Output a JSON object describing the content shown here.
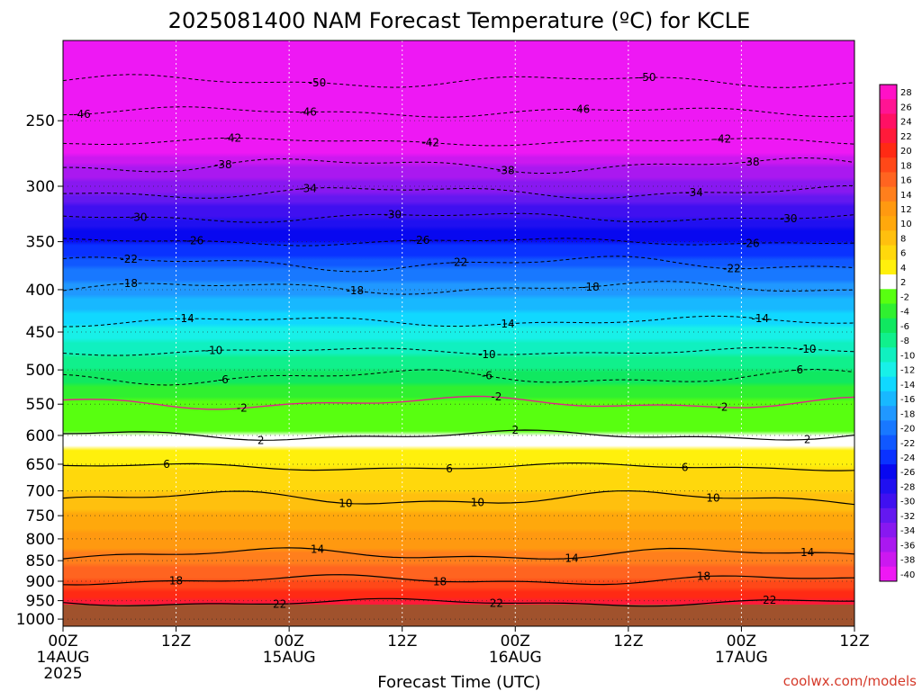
{
  "chart_data": {
    "type": "heatmap",
    "title": "2025081400 NAM Forecast Temperature (ºC) for KCLE",
    "xlabel": "Forecast Time (UTC)",
    "ylabel": "",
    "credit": "coolwx.com/models",
    "x_ticks": [
      {
        "hour": 0,
        "label": "00Z",
        "sub": [
          "14AUG",
          "2025"
        ]
      },
      {
        "hour": 12,
        "label": "12Z",
        "sub": []
      },
      {
        "hour": 24,
        "label": "00Z",
        "sub": [
          "15AUG"
        ]
      },
      {
        "hour": 36,
        "label": "12Z",
        "sub": []
      },
      {
        "hour": 48,
        "label": "00Z",
        "sub": [
          "16AUG"
        ]
      },
      {
        "hour": 60,
        "label": "12Z",
        "sub": []
      },
      {
        "hour": 72,
        "label": "00Z",
        "sub": [
          "17AUG"
        ]
      },
      {
        "hour": 84,
        "label": "12Z",
        "sub": []
      }
    ],
    "xlim": [
      0,
      84
    ],
    "y_ticks": [
      250,
      300,
      350,
      400,
      450,
      500,
      550,
      600,
      650,
      700,
      750,
      800,
      850,
      900,
      950,
      1000
    ],
    "ylim_hPa": [
      1020,
      200
    ],
    "y_scale": "log-pressure",
    "grid": true,
    "colorbar": {
      "levels": [
        28,
        26,
        24,
        22,
        20,
        18,
        16,
        14,
        12,
        10,
        8,
        6,
        4,
        2,
        -2,
        -4,
        -6,
        -8,
        -10,
        -12,
        -14,
        -16,
        -18,
        -20,
        -22,
        -24,
        -26,
        -28,
        -30,
        -32,
        -34,
        -36,
        -38,
        -40
      ],
      "colors": [
        "#ff11c6",
        "#ff1493",
        "#ff1064",
        "#ff1a3a",
        "#ff2a14",
        "#ff4818",
        "#ff6420",
        "#ff7f1c",
        "#ff9910",
        "#ffa80c",
        "#ffc00e",
        "#ffd80c",
        "#fff00c",
        "#ffffff",
        "#58ff10",
        "#30f030",
        "#10e860",
        "#10f08c",
        "#10f0c0",
        "#18f0e8",
        "#10d8ff",
        "#18b8ff",
        "#2098ff",
        "#1878ff",
        "#1058ff",
        "#0a32ff",
        "#0808f0",
        "#2010f0",
        "#4010f0",
        "#6418f0",
        "#8818f0",
        "#aa18f0",
        "#cc18f0",
        "#ee18f4"
      ],
      "position": "right"
    },
    "ground_color": "#a0522d",
    "profile": [
      {
        "p": 1000,
        "t": 23
      },
      {
        "p": 950,
        "t": 22
      },
      {
        "p": 900,
        "t": 18
      },
      {
        "p": 850,
        "t": 15
      },
      {
        "p": 800,
        "t": 12.5
      },
      {
        "p": 750,
        "t": 10.5
      },
      {
        "p": 700,
        "t": 8
      },
      {
        "p": 650,
        "t": 5.5
      },
      {
        "p": 600,
        "t": 2.5
      },
      {
        "p": 550,
        "t": -1.5
      },
      {
        "p": 500,
        "t": -6
      },
      {
        "p": 450,
        "t": -11
      },
      {
        "p": 400,
        "t": -17
      },
      {
        "p": 350,
        "t": -24
      },
      {
        "p": 300,
        "t": -33
      },
      {
        "p": 250,
        "t": -43
      },
      {
        "p": 200,
        "t": -54
      }
    ],
    "contours": [
      {
        "value": 22,
        "p": 955,
        "labels": [
          {
            "x": 23,
            "text": "22"
          },
          {
            "x": 46,
            "text": "22"
          },
          {
            "x": 75,
            "text": "22"
          }
        ]
      },
      {
        "value": 18,
        "p": 897,
        "labels": [
          {
            "x": 12,
            "text": "18"
          },
          {
            "x": 40,
            "text": "18"
          },
          {
            "x": 68,
            "text": "18"
          }
        ]
      },
      {
        "value": 14,
        "p": 835,
        "labels": [
          {
            "x": 27,
            "text": "14"
          },
          {
            "x": 54,
            "text": "14"
          },
          {
            "x": 79,
            "text": "14"
          }
        ]
      },
      {
        "value": 10,
        "p": 715,
        "labels": [
          {
            "x": 30,
            "text": "10"
          },
          {
            "x": 44,
            "text": "10"
          },
          {
            "x": 69,
            "text": "10"
          }
        ]
      },
      {
        "value": 6,
        "p": 655,
        "labels": [
          {
            "x": 11,
            "text": "6"
          },
          {
            "x": 41,
            "text": "6"
          },
          {
            "x": 66,
            "text": "6"
          }
        ]
      },
      {
        "value": 2,
        "p": 600,
        "labels": [
          {
            "x": 21,
            "text": "2"
          },
          {
            "x": 48,
            "text": "2"
          },
          {
            "x": 79,
            "text": "2"
          }
        ]
      },
      {
        "value": -2,
        "p": 548,
        "labels": [
          {
            "x": 19,
            "text": "-2"
          },
          {
            "x": 46,
            "text": "-2"
          },
          {
            "x": 70,
            "text": "-2"
          }
        ]
      },
      {
        "value": -6,
        "p": 510,
        "labels": [
          {
            "x": 17,
            "text": "-6"
          },
          {
            "x": 45,
            "text": "-6"
          },
          {
            "x": 78,
            "text": "-6"
          }
        ]
      },
      {
        "value": -10,
        "p": 475,
        "labels": [
          {
            "x": 16,
            "text": "-10"
          },
          {
            "x": 45,
            "text": "-10"
          },
          {
            "x": 79,
            "text": "-10"
          }
        ]
      },
      {
        "value": -14,
        "p": 437,
        "labels": [
          {
            "x": 13,
            "text": "-14"
          },
          {
            "x": 47,
            "text": "-14"
          },
          {
            "x": 74,
            "text": "-14"
          }
        ]
      },
      {
        "value": -18,
        "p": 398,
        "labels": [
          {
            "x": 7,
            "text": "-18"
          },
          {
            "x": 31,
            "text": "-18"
          },
          {
            "x": 56,
            "text": "-18"
          }
        ]
      },
      {
        "value": -22,
        "p": 372,
        "labels": [
          {
            "x": 7,
            "text": "-22"
          },
          {
            "x": 42,
            "text": "-22"
          },
          {
            "x": 71,
            "text": "-22"
          }
        ]
      },
      {
        "value": -26,
        "p": 350,
        "labels": [
          {
            "x": 14,
            "text": "-26"
          },
          {
            "x": 38,
            "text": "-26"
          },
          {
            "x": 73,
            "text": "-26"
          }
        ]
      },
      {
        "value": -30,
        "p": 327,
        "labels": [
          {
            "x": 8,
            "text": "-30"
          },
          {
            "x": 35,
            "text": "-30"
          },
          {
            "x": 77,
            "text": "-30"
          }
        ]
      },
      {
        "value": -34,
        "p": 305,
        "labels": [
          {
            "x": 26,
            "text": "-34"
          },
          {
            "x": 67,
            "text": "-34"
          }
        ]
      },
      {
        "value": -38,
        "p": 283,
        "labels": [
          {
            "x": 17,
            "text": "-38"
          },
          {
            "x": 47,
            "text": "-38"
          },
          {
            "x": 73,
            "text": "-38"
          }
        ]
      },
      {
        "value": -42,
        "p": 265,
        "labels": [
          {
            "x": 18,
            "text": "-42"
          },
          {
            "x": 39,
            "text": "-42"
          },
          {
            "x": 70,
            "text": "-42"
          }
        ]
      },
      {
        "value": -46,
        "p": 244,
        "labels": [
          {
            "x": 2,
            "text": "-46"
          },
          {
            "x": 26,
            "text": "-46"
          },
          {
            "x": 55,
            "text": "-46"
          }
        ]
      },
      {
        "value": -50,
        "p": 224,
        "labels": [
          {
            "x": 27,
            "text": "-50"
          },
          {
            "x": 62,
            "text": "-50"
          }
        ]
      }
    ]
  }
}
